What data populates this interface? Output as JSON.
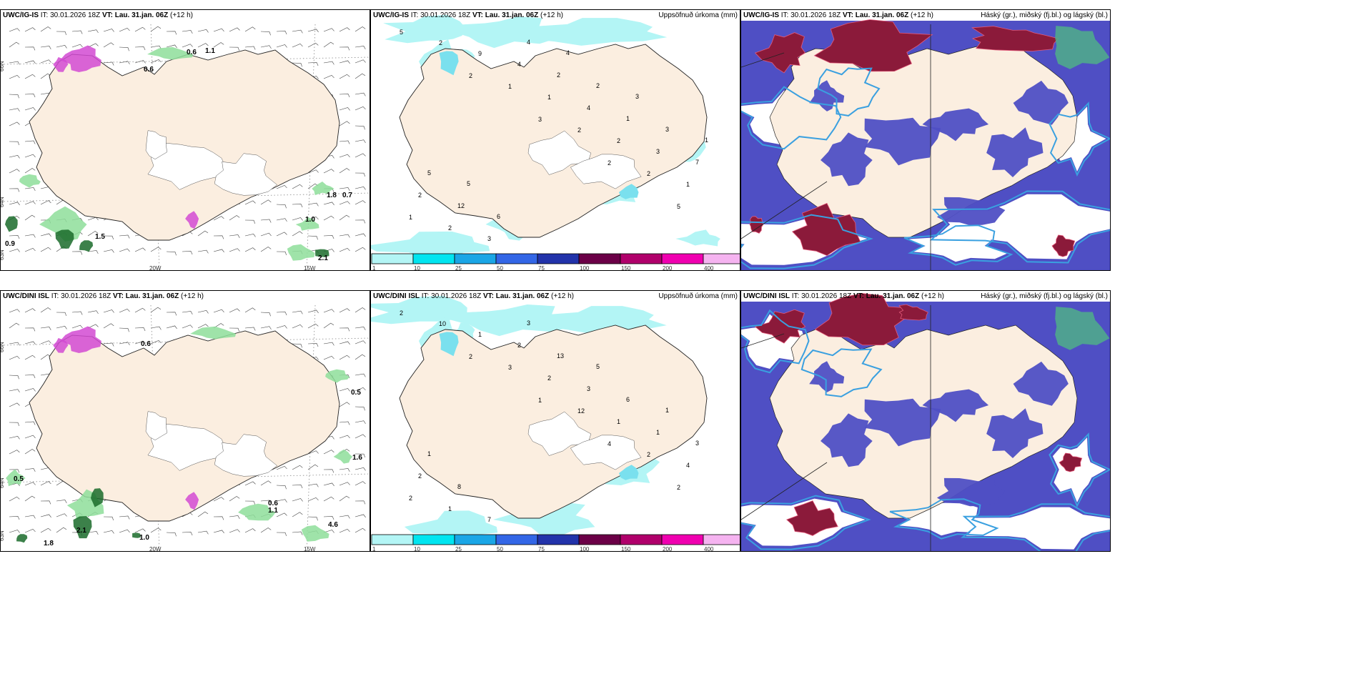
{
  "panels": [
    {
      "model": "UWC/IG-IS",
      "issue": "IT: 30.01.2026 18Z",
      "vt_label": "VT:",
      "vt": "Lau. 31.jan. 06Z",
      "lead": "(+12 h)"
    },
    {
      "model": "UWC/IG-IS",
      "issue": "IT: 30.01.2026 18Z",
      "vt_label": "VT:",
      "vt": "Lau. 31.jan. 06Z",
      "lead": "(+12 h)",
      "right_title": "Uppsöfnuð úrkoma (mm)"
    },
    {
      "model": "UWC/IG-IS",
      "issue": "IT: 30.01.2026 18Z",
      "vt_label": "VT:",
      "vt": "Lau. 31.jan. 06Z",
      "lead": "(+12 h)",
      "right_title": "Háský (gr.), miðský (fj.bl.) og lágský (bl.)"
    },
    {
      "model": "UWC/DINI ISL",
      "issue": "IT: 30.01.2026 18Z",
      "vt_label": "VT:",
      "vt": "Lau. 31.jan. 06Z",
      "lead": "(+12 h)"
    },
    {
      "model": "UWC/DINI ISL",
      "issue": "IT: 30.01.2026 18Z",
      "vt_label": "VT:",
      "vt": "Lau. 31.jan. 06Z",
      "lead": "(+12 h)",
      "right_title": "Uppsöfnuð úrkoma (mm)"
    },
    {
      "model": "UWC/DINI ISL",
      "issue": "IT: 30.01.2026 18Z",
      "vt_label": "VT:",
      "vt": "Lau. 31.jan. 06Z",
      "lead": "(+12 h)",
      "right_title": "Háský (gr.), miðský (fj.bl.) og lágský (bl.)"
    }
  ],
  "axis_labels": {
    "lat_66": "66N",
    "lat_64": "64N",
    "lat_65": "65N",
    "lat_63": "63N",
    "lon_20": "20W",
    "lon_15": "15W"
  },
  "colorbar": {
    "ticks": [
      "1",
      "10",
      "25",
      "50",
      "75",
      "100",
      "150",
      "200",
      "400"
    ],
    "colors": [
      "#b3f5f5",
      "#00e5f0",
      "#1aa6e6",
      "#3366e6",
      "#2233aa",
      "#6b0047",
      "#b0006b",
      "#f000b0",
      "#f5b3f0"
    ]
  },
  "precip_labels_top": [
    "5",
    "2",
    "3",
    "2",
    "5",
    "2",
    "1",
    "2",
    "2",
    "1",
    "9",
    "1",
    "2",
    "1",
    "2",
    "4",
    "4",
    "3",
    "2",
    "3",
    "2",
    "1",
    "7",
    "12",
    "4",
    "2",
    "3",
    "5",
    "6",
    "4",
    "3",
    "1",
    "5"
  ],
  "precip_labels_bottom": [
    "2",
    "2",
    "1",
    "4",
    "2",
    "10",
    "3",
    "12",
    "2",
    "2",
    "1",
    "2",
    "1",
    "4",
    "1",
    "2",
    "3",
    "1",
    "2",
    "7",
    "13",
    "6",
    "3",
    "8",
    "3",
    "5",
    "1",
    "1"
  ],
  "wind_labels_top": [
    "0.6",
    "1.1",
    "0.6",
    "0.9",
    "1.5",
    "1.8",
    "0.7",
    "1.0",
    "2.1"
  ],
  "wind_labels_bottom": [
    "0.6",
    "0.5",
    "1.6",
    "0.5",
    "0.6",
    "1.1",
    "1.0",
    "1.8",
    "4.6",
    "2.1"
  ],
  "colors": {
    "land": "#fbeee0",
    "precip_light": "#b3f5f5",
    "cloud_high": "#8b1a3a",
    "cloud_mid": "#4f4fc4",
    "cloud_low": "#3aa0e0",
    "green": "#8ede9a",
    "magenta": "#d24ad2"
  }
}
